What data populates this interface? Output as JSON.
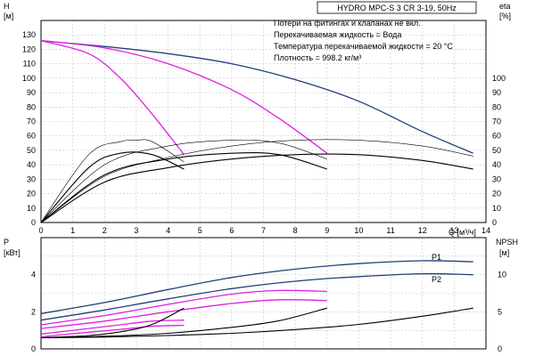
{
  "chart_data": [
    {
      "type": "line",
      "panel": "head-efficiency",
      "title": "HYDRO MPC-S 3 CR 3-19, 50Hz",
      "notes": [
        "Потери на фитингах и клапанах не вкл.",
        "Перекачиваемая жидкость = Вода",
        "Температура перекачиваемой жидкости = 20 °C",
        "Плотность = 998.2 кг/м³"
      ],
      "xlabel": "Q [м³/ч]",
      "ylabel_left": [
        "H",
        "[м]"
      ],
      "ylabel_right": [
        "eta",
        "[%]"
      ],
      "xlim": [
        0,
        14
      ],
      "xticks": [
        0,
        1,
        2,
        3,
        4,
        5,
        6,
        7,
        8,
        9,
        10,
        11,
        12,
        13,
        14
      ],
      "ylim_left": [
        0,
        140
      ],
      "yticks_left": [
        0,
        10,
        20,
        30,
        40,
        50,
        60,
        70,
        80,
        90,
        100,
        110,
        120,
        130
      ],
      "ylim_right": [
        0,
        140
      ],
      "yticks_right": [
        0,
        10,
        20,
        30,
        40,
        50,
        60,
        70,
        80,
        90,
        100
      ],
      "grid": true,
      "series": [
        {
          "color": "#1f3f7a",
          "axis": "left",
          "x": [
            0,
            2,
            4,
            6,
            8,
            10,
            12,
            13.6
          ],
          "y": [
            126,
            122,
            117,
            110,
            99,
            84,
            63,
            48
          ]
        },
        {
          "color": "#e020e0",
          "axis": "left",
          "x": [
            0,
            2,
            4,
            6,
            7.5,
            9
          ],
          "y": [
            126,
            121,
            110,
            92,
            72,
            48
          ]
        },
        {
          "color": "#e020e0",
          "axis": "left",
          "x": [
            0,
            1.5,
            2.5,
            3.5,
            4.5
          ],
          "y": [
            126,
            117,
            100,
            75,
            47
          ]
        },
        {
          "color": "#000000",
          "axis": "left",
          "x": [
            0,
            2,
            4,
            6,
            8,
            10,
            12,
            13.6
          ],
          "y": [
            0,
            28,
            38,
            44,
            47,
            47,
            43,
            37
          ]
        },
        {
          "color": "#000000",
          "axis": "left",
          "x": [
            0,
            2,
            4,
            6,
            7.5,
            9
          ],
          "y": [
            0,
            33,
            44,
            48,
            47,
            37
          ]
        },
        {
          "color": "#000000",
          "axis": "left",
          "x": [
            0,
            1.5,
            2.5,
            3.5,
            4.5
          ],
          "y": [
            0,
            38,
            48,
            47,
            37
          ]
        },
        {
          "color": "#000000",
          "axis": "right",
          "x": [
            0,
            2,
            4,
            6,
            8,
            10,
            12,
            13.6
          ],
          "y": [
            0,
            32,
            45,
            53,
            57,
            57,
            53,
            46
          ]
        },
        {
          "color": "#000000",
          "axis": "right",
          "x": [
            0,
            2,
            4,
            6,
            7.5,
            9
          ],
          "y": [
            0,
            40,
            53,
            57,
            55,
            44
          ]
        },
        {
          "color": "#000000",
          "axis": "right",
          "x": [
            0,
            1.5,
            2.5,
            3,
            3.5,
            4.5
          ],
          "y": [
            0,
            47,
            56,
            57,
            56,
            42
          ]
        }
      ]
    },
    {
      "type": "line",
      "panel": "power-npsh",
      "ylabel_left": [
        "P",
        "[кВт]"
      ],
      "ylabel_right": [
        "NPSH",
        "[м]"
      ],
      "xlim": [
        0,
        14
      ],
      "ylim_left": [
        0,
        6
      ],
      "yticks_left": [
        0,
        2,
        4
      ],
      "ylim_right": [
        0,
        15
      ],
      "yticks_right": [
        0,
        5,
        10
      ],
      "grid": true,
      "series": [
        {
          "name": "P1",
          "color": "#1f3f7a",
          "axis": "left",
          "x": [
            0,
            2,
            4,
            6,
            8,
            10,
            12,
            13.6
          ],
          "y": [
            1.9,
            2.5,
            3.2,
            3.85,
            4.3,
            4.6,
            4.75,
            4.7
          ]
        },
        {
          "name": "P2",
          "color": "#1f3f7a",
          "axis": "left",
          "x": [
            0,
            2,
            4,
            6,
            8,
            10,
            12,
            13.6
          ],
          "y": [
            1.55,
            2.1,
            2.7,
            3.25,
            3.65,
            3.9,
            4.05,
            4.0
          ]
        },
        {
          "color": "#e020e0",
          "axis": "left",
          "x": [
            0,
            2,
            4,
            6,
            7.5,
            9
          ],
          "y": [
            1.3,
            1.8,
            2.4,
            2.95,
            3.15,
            3.1
          ]
        },
        {
          "color": "#e020e0",
          "axis": "left",
          "x": [
            0,
            2,
            4,
            6,
            7.5,
            9
          ],
          "y": [
            1.1,
            1.5,
            2.0,
            2.45,
            2.65,
            2.6
          ]
        },
        {
          "color": "#e020e0",
          "axis": "left",
          "x": [
            0,
            1.5,
            2.5,
            3.5,
            4.5
          ],
          "y": [
            0.8,
            1.1,
            1.3,
            1.5,
            1.55
          ]
        },
        {
          "color": "#e020e0",
          "axis": "left",
          "x": [
            0,
            1.5,
            2.5,
            3.5,
            4.5
          ],
          "y": [
            0.65,
            0.9,
            1.05,
            1.22,
            1.27
          ]
        },
        {
          "color": "#000000",
          "axis": "right",
          "x": [
            0,
            2,
            4,
            6,
            8,
            10,
            12,
            13.6
          ],
          "y": [
            1.5,
            1.6,
            1.8,
            2.1,
            2.6,
            3.3,
            4.4,
            5.5
          ]
        },
        {
          "color": "#000000",
          "axis": "right",
          "x": [
            0,
            2,
            4,
            6,
            7.5,
            9
          ],
          "y": [
            1.5,
            1.7,
            2.1,
            2.9,
            3.8,
            5.5
          ]
        },
        {
          "color": "#000000",
          "axis": "right",
          "x": [
            0,
            1.5,
            2.5,
            3.5,
            4.5
          ],
          "y": [
            1.5,
            1.8,
            2.3,
            3.3,
            5.5
          ]
        }
      ]
    }
  ]
}
